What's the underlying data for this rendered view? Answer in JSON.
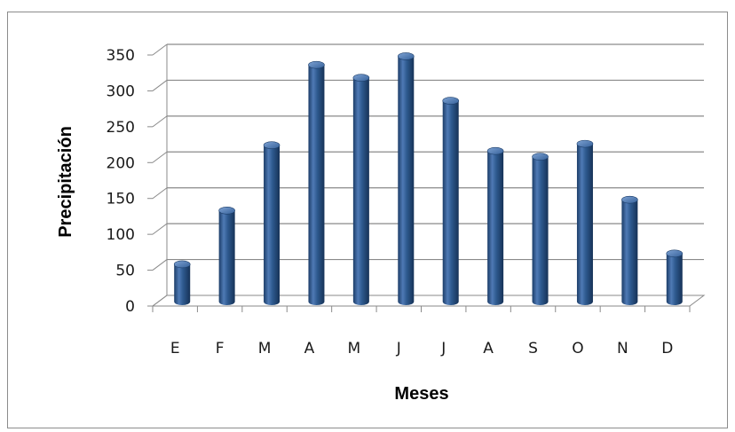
{
  "chart_data": {
    "type": "bar",
    "style": "3d-cylinder",
    "categories": [
      "E",
      "F",
      "M",
      "A",
      "M",
      "J",
      "J",
      "A",
      "S",
      "O",
      "N",
      "D"
    ],
    "values": [
      52,
      127,
      218,
      330,
      312,
      342,
      280,
      210,
      202,
      220,
      142,
      67
    ],
    "xlabel": "Meses",
    "ylabel": "Precipitación",
    "ylim": [
      0,
      350
    ],
    "yticks": [
      0,
      50,
      100,
      150,
      200,
      250,
      300,
      350
    ],
    "grid": true,
    "legend": "none",
    "bar_color": "#2e5a8f"
  }
}
